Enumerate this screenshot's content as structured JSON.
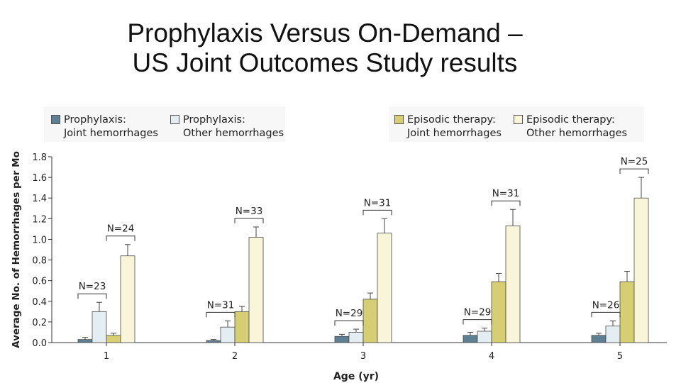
{
  "slide": {
    "title_line1": "Prophylaxis Versus On-Demand –",
    "title_line2": "US Joint Outcomes Study results"
  },
  "chart_data": {
    "type": "bar",
    "title": "",
    "xlabel": "Age (yr)",
    "ylabel": "Average No. of Hemorrhages per Mo",
    "ylim": [
      0,
      1.8
    ],
    "yticks": [
      "0.0",
      "0.2",
      "0.4",
      "0.6",
      "0.8",
      "1.0",
      "1.2",
      "1.4",
      "1.6",
      "1.8"
    ],
    "categories": [
      "1",
      "2",
      "3",
      "4",
      "5"
    ],
    "series": [
      {
        "name": "Prophylaxis: Joint hemorrhages",
        "legend_line1": "Prophylaxis:",
        "legend_line2": "Joint hemorrhages",
        "color": "#5f7f92",
        "values": [
          0.03,
          0.02,
          0.06,
          0.07,
          0.07
        ],
        "errors": [
          0.02,
          0.01,
          0.02,
          0.03,
          0.02
        ]
      },
      {
        "name": "Prophylaxis: Other hemorrhages",
        "legend_line1": "Prophylaxis:",
        "legend_line2": "Other hemorrhages",
        "color": "#e4eef2",
        "values": [
          0.3,
          0.15,
          0.1,
          0.11,
          0.16
        ],
        "errors": [
          0.09,
          0.06,
          0.03,
          0.03,
          0.05
        ]
      },
      {
        "name": "Episodic therapy: Joint hemorrhages",
        "legend_line1": "Episodic therapy:",
        "legend_line2": "Joint hemorrhages",
        "color": "#d6ce73",
        "values": [
          0.07,
          0.3,
          0.42,
          0.59,
          0.59
        ],
        "errors": [
          0.02,
          0.05,
          0.06,
          0.08,
          0.1
        ]
      },
      {
        "name": "Episodic therapy: Other hemorrhages",
        "legend_line1": "Episodic therapy:",
        "legend_line2": "Other hemorrhages",
        "color": "#f8f5d8",
        "values": [
          0.84,
          1.02,
          1.06,
          1.13,
          1.4
        ],
        "errors": [
          0.11,
          0.1,
          0.14,
          0.16,
          0.2
        ]
      }
    ],
    "annotations": [
      {
        "text": "N=23",
        "category": "1",
        "group": "prophylaxis"
      },
      {
        "text": "N=24",
        "category": "1",
        "group": "episodic"
      },
      {
        "text": "N=31",
        "category": "2",
        "group": "prophylaxis"
      },
      {
        "text": "N=33",
        "category": "2",
        "group": "episodic"
      },
      {
        "text": "N=29",
        "category": "3",
        "group": "prophylaxis"
      },
      {
        "text": "N=31",
        "category": "3",
        "group": "episodic"
      },
      {
        "text": "N=29",
        "category": "4",
        "group": "prophylaxis"
      },
      {
        "text": "N=31",
        "category": "4",
        "group": "episodic"
      },
      {
        "text": "N=26",
        "category": "5",
        "group": "prophylaxis"
      },
      {
        "text": "N=25",
        "category": "5",
        "group": "episodic"
      }
    ]
  }
}
